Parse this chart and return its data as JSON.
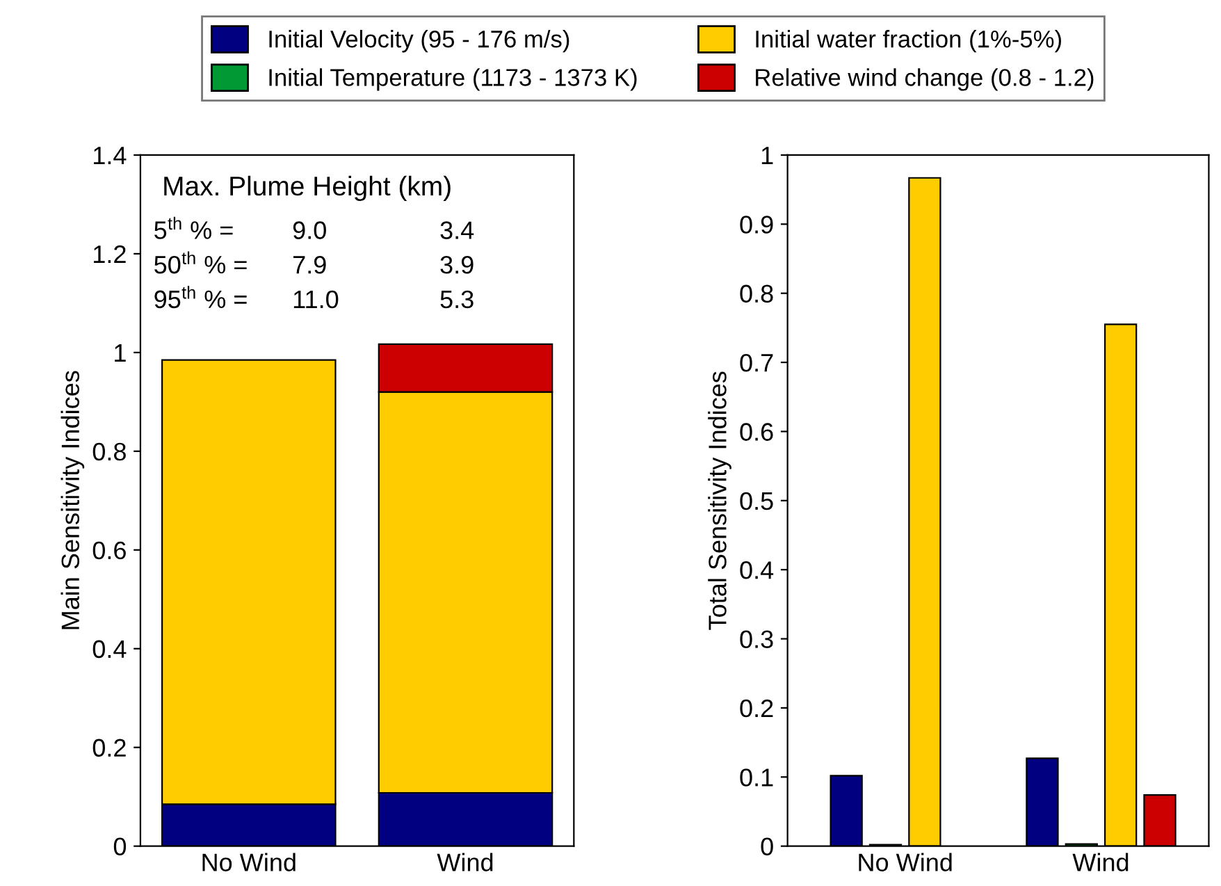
{
  "chart_data": [
    {
      "type": "bar",
      "stacked": true,
      "ylabel": "Main Sensitivity Indices",
      "categories": [
        "No Wind",
        "Wind"
      ],
      "ylim": [
        0,
        1.4
      ],
      "yticks": [
        0,
        0.2,
        0.4,
        0.6,
        0.8,
        1,
        1.2,
        1.4
      ],
      "grid": false,
      "legend": "top",
      "series": [
        {
          "name": "Initial Velocity (95 - 176 m/s)",
          "color": "#000080",
          "values": [
            0.085,
            0.108
          ]
        },
        {
          "name": "Initial Temperature (1173 - 1373 K)",
          "color": "#009933",
          "values": [
            null,
            null
          ]
        },
        {
          "name": "Initial water fraction (1%-5%)",
          "color": "#ffcc00",
          "values": [
            0.9,
            0.812
          ]
        },
        {
          "name": "Relative wind change (0.8 - 1.2)",
          "color": "#cc0000",
          "values": [
            null,
            0.097
          ]
        }
      ],
      "annotations": [
        "Max. Plume Height (km)",
        "5$^{th}$ % =",
        "9.0",
        "3.4",
        "50$^{th}$ % =",
        "7.9",
        "3.9",
        "95$^{th}$ % =",
        "11.0",
        "5.3"
      ]
    },
    {
      "type": "bar",
      "ylabel": "Total Sensitivity Indices",
      "categories": [
        "No Wind",
        "Wind"
      ],
      "ylim": [
        0,
        1
      ],
      "yticks": [
        0,
        0.1,
        0.2,
        0.3,
        0.4,
        0.5,
        0.6,
        0.7,
        0.8,
        0.9,
        1
      ],
      "grid": false,
      "series": [
        {
          "color": "#000080",
          "values": [
            0.102,
            0.127
          ]
        },
        {
          "color": "#009933",
          "values": [
            0.002,
            0.003
          ]
        },
        {
          "color": "#ffcc00",
          "values": [
            0.967,
            0.755
          ]
        },
        {
          "color": "#cc0000",
          "values": [
            null,
            0.074
          ]
        }
      ]
    }
  ]
}
